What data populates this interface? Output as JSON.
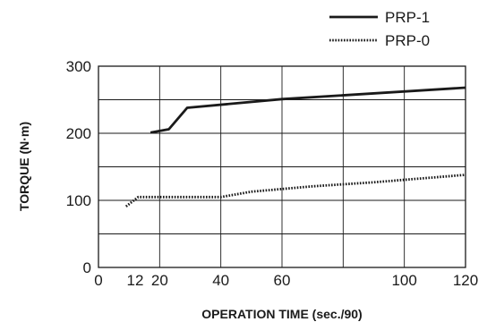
{
  "chart_data": {
    "type": "line",
    "title": "",
    "xlabel": "OPERATION TIME (sec./90)",
    "ylabel": "TORQUE (N·m)",
    "xlim": [
      0,
      120
    ],
    "ylim": [
      0,
      300
    ],
    "xticks": [
      0,
      12,
      20,
      40,
      60,
      100,
      120
    ],
    "xtick_labels": [
      "0",
      "12",
      "20",
      "40",
      "60",
      "100",
      "120"
    ],
    "yticks": [
      0,
      100,
      200,
      300
    ],
    "ytick_labels": [
      "0",
      "100",
      "200",
      "300"
    ],
    "grid": true,
    "legend_position": "top-right",
    "series": [
      {
        "name": "PRP-1",
        "style": "solid",
        "color": "#1a1a1a",
        "x": [
          17,
          23,
          29,
          60,
          120
        ],
        "y": [
          201,
          206,
          238,
          251,
          268
        ]
      },
      {
        "name": "PRP-0",
        "style": "dotted",
        "color": "#1a1a1a",
        "x": [
          9,
          13,
          40,
          50,
          70,
          90,
          120
        ],
        "y": [
          91,
          105,
          105,
          113,
          121,
          127,
          138
        ]
      }
    ]
  }
}
